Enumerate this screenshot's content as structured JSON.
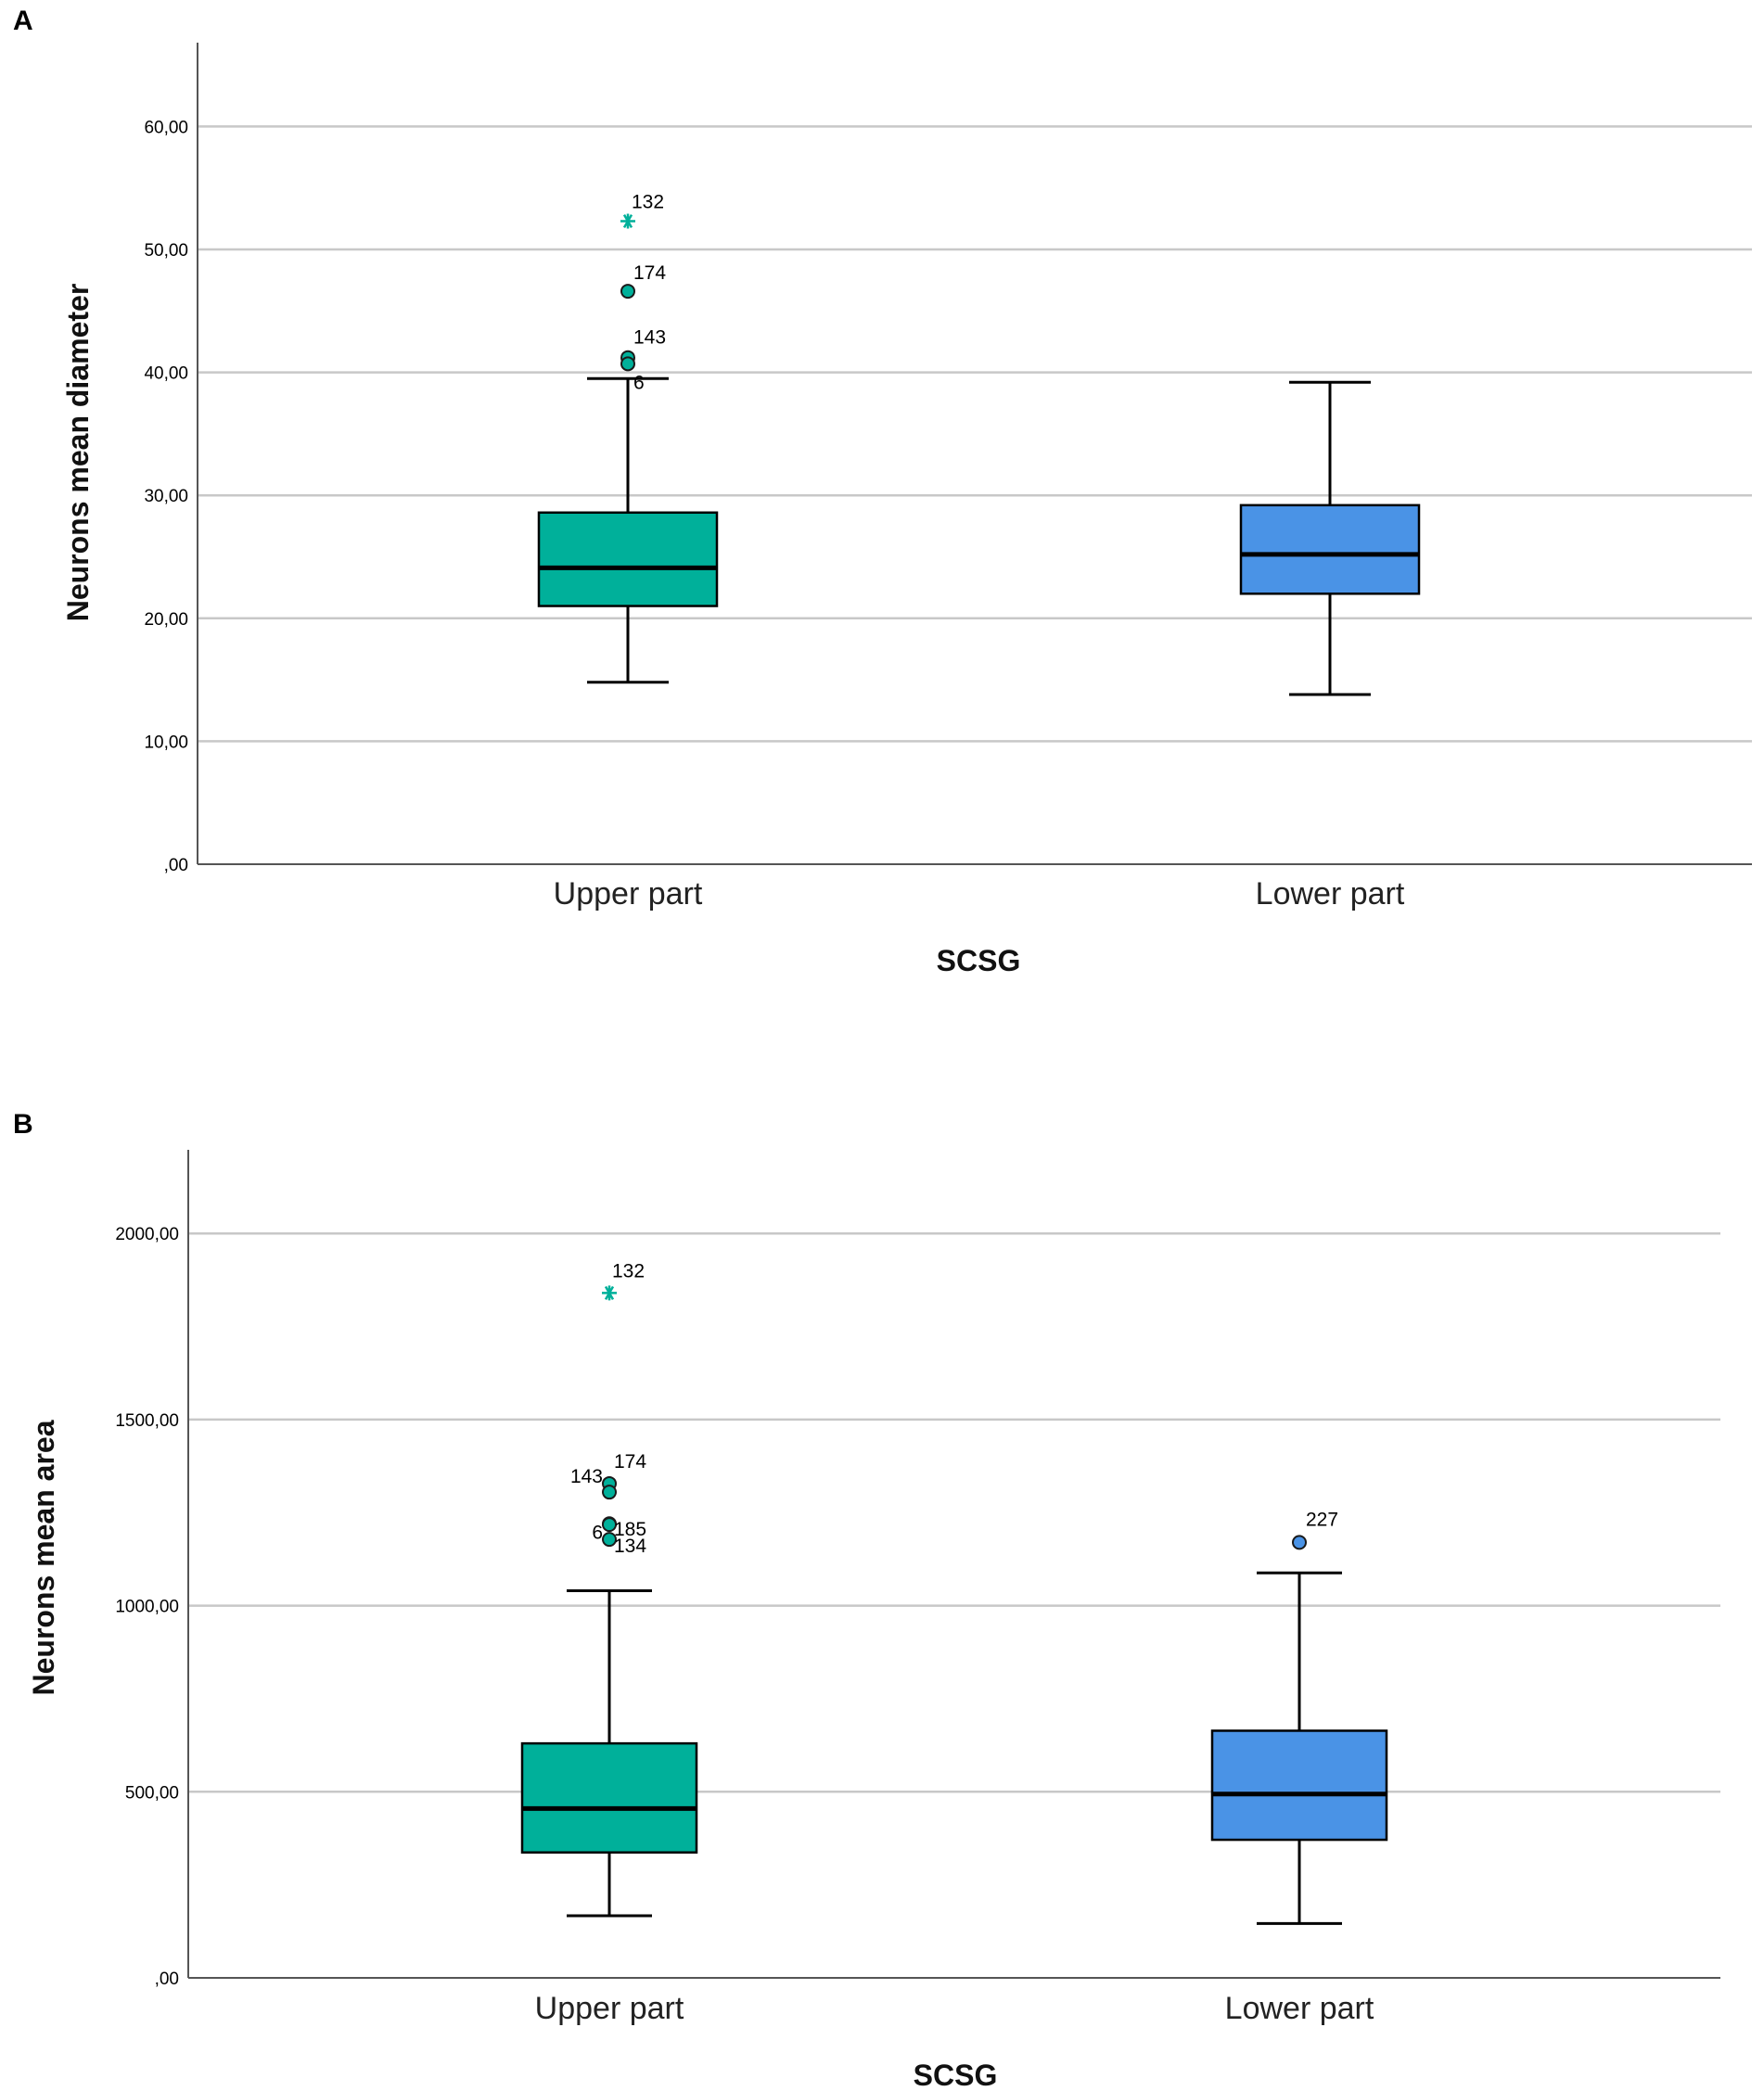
{
  "figure": {
    "panel_labels": [
      "A",
      "B"
    ]
  },
  "colors": {
    "upper": "#00b09a",
    "lower": "#4a93e6",
    "grid": "#c8c8c8",
    "axis": "#555555"
  },
  "chart_data": [
    {
      "type": "box",
      "panel": "A",
      "title": "",
      "xlabel": "SCSG",
      "ylabel": "Neurons mean diameter",
      "ylim": [
        0,
        66.6
      ],
      "yticks": [
        0,
        10,
        20,
        30,
        40,
        50,
        60
      ],
      "ytick_labels": [
        ",00",
        "10,00",
        "20,00",
        "30,00",
        "40,00",
        "50,00",
        "60,00"
      ],
      "grid": true,
      "categories": [
        "Upper part",
        "Lower part"
      ],
      "boxes": [
        {
          "name": "Upper part",
          "whisker_low": 14.8,
          "q1": 21.0,
          "median": 24.1,
          "q3": 28.6,
          "whisker_high": 39.5,
          "outliers": [
            {
              "value": 52.3,
              "label": "132",
              "marker": "star"
            },
            {
              "value": 46.6,
              "label": "174",
              "marker": "circle"
            },
            {
              "value": 41.2,
              "label": "143",
              "marker": "circle"
            },
            {
              "value": 40.7,
              "label": "6",
              "marker": "circle"
            }
          ]
        },
        {
          "name": "Lower part",
          "whisker_low": 13.8,
          "q1": 22.0,
          "median": 25.2,
          "q3": 29.2,
          "whisker_high": 39.2,
          "outliers": []
        }
      ]
    },
    {
      "type": "box",
      "panel": "B",
      "title": "",
      "xlabel": "SCSG",
      "ylabel": "Neurons mean area",
      "ylim": [
        0,
        2220
      ],
      "yticks": [
        0,
        500,
        1000,
        1500,
        2000
      ],
      "ytick_labels": [
        ",00",
        "500,00",
        "1000,00",
        "1500,00",
        "2000,00"
      ],
      "grid": true,
      "categories": [
        "Upper part",
        "Lower part"
      ],
      "boxes": [
        {
          "name": "Upper part",
          "whisker_low": 167,
          "q1": 337,
          "median": 455,
          "q3": 630,
          "whisker_high": 1040,
          "outliers": [
            {
              "value": 1840,
              "label": "132",
              "marker": "star"
            },
            {
              "value": 1328,
              "label": "174",
              "marker": "circle"
            },
            {
              "value": 1305,
              "label": "143",
              "marker": "circle"
            },
            {
              "value": 1220,
              "label": "6",
              "marker": "circle"
            },
            {
              "value": 1218,
              "label": "185",
              "marker": "circle"
            },
            {
              "value": 1178,
              "label": "134",
              "marker": "circle"
            }
          ]
        },
        {
          "name": "Lower part",
          "whisker_low": 146,
          "q1": 371,
          "median": 494,
          "q3": 664,
          "whisker_high": 1088,
          "outliers": [
            {
              "value": 1170,
              "label": "227",
              "marker": "circle"
            }
          ]
        }
      ]
    }
  ]
}
